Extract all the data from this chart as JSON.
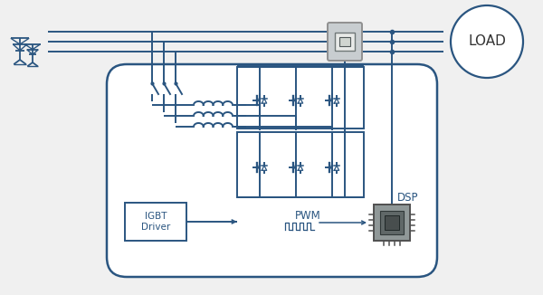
{
  "bg_color": "#f0f0f0",
  "line_color": "#2a5580",
  "line_width": 1.4,
  "figsize": [
    6.0,
    3.26
  ],
  "dpi": 100,
  "labels": {
    "load": "LOAD",
    "igbt": "IGBT\nDriver",
    "pwm": "PWM",
    "dsp": "DSP"
  },
  "meter_fc": "#c8cdd0",
  "meter_ec": "#909090",
  "chip_fc": "#909898",
  "chip_ec": "#505050"
}
